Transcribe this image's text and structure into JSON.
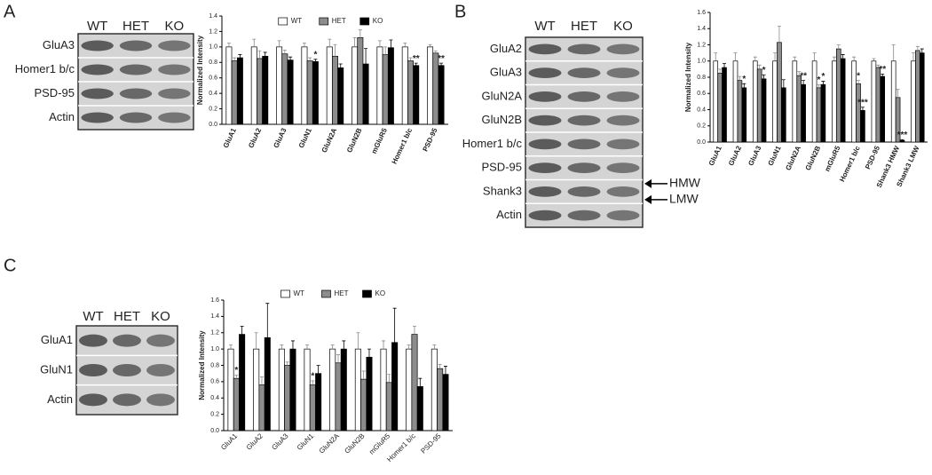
{
  "panels": [
    {
      "letter": "A",
      "lanes": [
        "WT",
        "HET",
        "KO"
      ],
      "rows": [
        "GluA3",
        "Homer1 b/c",
        "PSD-95",
        "Actin"
      ]
    },
    {
      "letter": "B",
      "lanes": [
        "WT",
        "HET",
        "KO"
      ],
      "rows": [
        "GluA2",
        "GluA3",
        "GluN2A",
        "GluN2B",
        "Homer1 b/c",
        "PSD-95",
        "Shank3",
        "Actin"
      ],
      "arrows": [
        "HMW",
        "LMW"
      ]
    },
    {
      "letter": "C",
      "lanes": [
        "WT",
        "HET",
        "KO"
      ],
      "rows": [
        "GluA1",
        "GluN1",
        "Actin"
      ]
    }
  ],
  "chart_data": [
    {
      "type": "bar",
      "ylabel": "Normalized Intensity",
      "legend": true,
      "categories": [
        "GluA1",
        "GluA2",
        "GluA3",
        "GluN1",
        "GluN2A",
        "GluN2B",
        "mGluR5",
        "Homer1 b/c",
        "PSD-95"
      ],
      "series": [
        {
          "name": "WT",
          "color": "#ffffff",
          "values": [
            1.0,
            1.0,
            1.0,
            1.0,
            1.0,
            1.0,
            1.0,
            1.0,
            1.0
          ],
          "errors": [
            0.05,
            0.1,
            0.08,
            0.05,
            0.1,
            0.12,
            0.08,
            0.05,
            0.03
          ]
        },
        {
          "name": "HET",
          "color": "#8c8c8c",
          "values": [
            0.82,
            0.85,
            0.91,
            0.82,
            0.88,
            1.12,
            0.9,
            0.82,
            0.92
          ],
          "errors": [
            0.04,
            0.1,
            0.05,
            0.04,
            0.15,
            0.1,
            0.1,
            0.04,
            0.03
          ]
        },
        {
          "name": "KO",
          "color": "#000000",
          "values": [
            0.86,
            0.88,
            0.83,
            0.81,
            0.73,
            0.78,
            0.99,
            0.76,
            0.76
          ],
          "errors": [
            0.04,
            0.05,
            0.04,
            0.03,
            0.05,
            0.2,
            0.1,
            0.03,
            0.03
          ]
        }
      ],
      "ylim": [
        0,
        1.4
      ],
      "yticks": [
        {
          "value": 0,
          "label": "0.0"
        },
        {
          "value": 0.2,
          "label": "0.2"
        },
        {
          "value": 0.4,
          "label": "0.4"
        },
        {
          "value": 0.6,
          "label": "0.6"
        },
        {
          "value": 0.8,
          "label": "0.8"
        },
        {
          "value": 1.0,
          "label": "1.0"
        },
        {
          "value": 1.2,
          "label": "1.2"
        },
        {
          "value": 1.4,
          "label": "1.4"
        }
      ],
      "annotations": [
        {
          "category": "GluN1",
          "series": "KO",
          "text": "*"
        },
        {
          "category": "Homer1 b/c",
          "series": "KO",
          "text": "**"
        },
        {
          "category": "PSD-95",
          "series": "KO",
          "text": "**"
        }
      ]
    },
    {
      "type": "bar",
      "ylabel": "Normalized Intensity",
      "legend": false,
      "categories": [
        "GluA1",
        "GluA2",
        "GluA3",
        "GluN1",
        "GluN2A",
        "GluN2B",
        "mGluR5",
        "Homer1 b/c",
        "PSD-95",
        "Shank3 HMW",
        "Shank3 LMW"
      ],
      "series": [
        {
          "name": "WT",
          "color": "#ffffff",
          "values": [
            1.0,
            1.0,
            1.0,
            1.0,
            1.0,
            1.0,
            1.0,
            1.0,
            1.0,
            1.0,
            1.0
          ],
          "errors": [
            0.1,
            0.1,
            0.05,
            0.1,
            0.05,
            0.1,
            0.05,
            0.05,
            0.03,
            0.2,
            0.1
          ]
        },
        {
          "name": "HET",
          "color": "#8c8c8c",
          "values": [
            0.85,
            0.76,
            0.9,
            1.23,
            0.82,
            0.67,
            1.15,
            0.72,
            0.92,
            0.55,
            1.13
          ],
          "errors": [
            0.05,
            0.05,
            0.05,
            0.2,
            0.05,
            0.04,
            0.05,
            0.04,
            0.03,
            0.1,
            0.05
          ]
        },
        {
          "name": "KO",
          "color": "#000000",
          "values": [
            0.92,
            0.67,
            0.78,
            0.67,
            0.71,
            0.71,
            1.03,
            0.39,
            0.81,
            0.02,
            1.1
          ],
          "errors": [
            0.05,
            0.05,
            0.05,
            0.1,
            0.05,
            0.04,
            0.05,
            0.04,
            0.03,
            0.01,
            0.05
          ]
        }
      ],
      "ylim": [
        0,
        1.6
      ],
      "yticks": [
        {
          "value": 0,
          "label": "0.0"
        },
        {
          "value": 0.2,
          "label": "0.2"
        },
        {
          "value": 0.4,
          "label": "0.4"
        },
        {
          "value": 0.6,
          "label": "0.6"
        },
        {
          "value": 0.8,
          "label": "0.8"
        },
        {
          "value": 1.0,
          "label": "1.0"
        },
        {
          "value": 1.2,
          "label": "1.2"
        },
        {
          "value": 1.4,
          "label": "1.4"
        },
        {
          "value": 1.6,
          "label": "1.6"
        }
      ],
      "annotations": [
        {
          "category": "GluA2",
          "series": "KO",
          "text": "*"
        },
        {
          "category": "GluA3",
          "series": "KO",
          "text": "*"
        },
        {
          "category": "GluN2A",
          "series": "KO",
          "text": "**"
        },
        {
          "category": "GluN2B",
          "series": "HET",
          "text": "*"
        },
        {
          "category": "GluN2B",
          "series": "KO",
          "text": "*"
        },
        {
          "category": "Homer1 b/c",
          "series": "HET",
          "text": "*"
        },
        {
          "category": "Homer1 b/c",
          "series": "KO",
          "text": "***"
        },
        {
          "category": "PSD-95",
          "series": "KO",
          "text": "**"
        },
        {
          "category": "Shank3 HMW",
          "series": "KO",
          "text": "***"
        }
      ]
    },
    {
      "type": "bar",
      "ylabel": "Normalized Intensity",
      "legend": true,
      "categories": [
        "GluA1",
        "GluA2",
        "GluA3",
        "GluN1",
        "GluN2A",
        "GluN2B",
        "mGluR5",
        "Homer1 b/c",
        "PSD-95"
      ],
      "series": [
        {
          "name": "WT",
          "color": "#ffffff",
          "values": [
            1.0,
            1.0,
            1.0,
            1.0,
            1.0,
            1.0,
            1.0,
            1.0,
            1.0
          ],
          "errors": [
            0.05,
            0.2,
            0.05,
            0.05,
            0.05,
            0.2,
            0.1,
            0.05,
            0.05
          ]
        },
        {
          "name": "HET",
          "color": "#8c8c8c",
          "values": [
            0.64,
            0.56,
            0.8,
            0.56,
            0.83,
            0.63,
            0.59,
            1.18,
            0.76
          ],
          "errors": [
            0.04,
            0.1,
            0.04,
            0.05,
            0.1,
            0.1,
            0.1,
            0.1,
            0.05
          ]
        },
        {
          "name": "KO",
          "color": "#000000",
          "values": [
            1.18,
            1.14,
            1.0,
            0.7,
            1.0,
            0.9,
            1.08,
            0.54,
            0.69
          ],
          "errors": [
            0.1,
            0.42,
            0.1,
            0.1,
            0.1,
            0.1,
            0.42,
            0.1,
            0.1
          ]
        }
      ],
      "ylim": [
        0,
        1.6
      ],
      "yticks": [
        {
          "value": 0,
          "label": "0.0"
        },
        {
          "value": 0.2,
          "label": "0.2"
        },
        {
          "value": 0.4,
          "label": "0.4"
        },
        {
          "value": 0.6,
          "label": "0.6"
        },
        {
          "value": 0.8,
          "label": "0.8"
        },
        {
          "value": 1.0,
          "label": "1.0"
        },
        {
          "value": 1.2,
          "label": "1.2"
        },
        {
          "value": 1.4,
          "label": "1.4"
        },
        {
          "value": 1.6,
          "label": "1.6"
        }
      ],
      "annotations": [
        {
          "category": "GluA1",
          "series": "HET",
          "text": "*"
        },
        {
          "category": "GluN1",
          "series": "HET",
          "text": "*"
        }
      ]
    }
  ]
}
